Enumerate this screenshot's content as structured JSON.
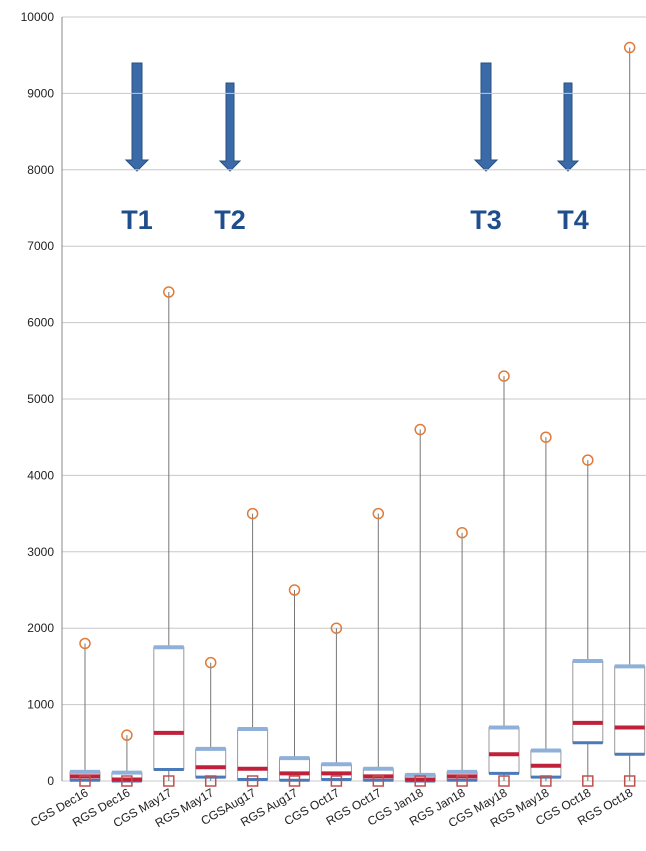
{
  "chart_data": {
    "type": "box",
    "categories": [
      "CGS Dec16",
      "RGS Dec16",
      "CGS May17",
      "RGS May17",
      "CGSAug17",
      "RGS Aug17",
      "CGS Oct17",
      "RGS Oct17",
      "CGS Jan18",
      "RGS Jan18",
      "CGS May18",
      "RGS May18",
      "CGS Oct18",
      "RGS Oct18"
    ],
    "min": [
      0,
      0,
      0,
      0,
      0,
      0,
      0,
      0,
      0,
      0,
      0,
      0,
      0,
      0
    ],
    "q1": [
      10,
      0,
      150,
      50,
      20,
      10,
      20,
      10,
      0,
      10,
      100,
      50,
      500,
      350
    ],
    "median": [
      60,
      20,
      630,
      180,
      160,
      100,
      100,
      60,
      20,
      60,
      350,
      200,
      760,
      700
    ],
    "q3": [
      120,
      110,
      1750,
      420,
      680,
      300,
      220,
      160,
      80,
      120,
      700,
      400,
      1570,
      1500
    ],
    "max": [
      1800,
      600,
      6400,
      1550,
      3500,
      2500,
      2000,
      3500,
      4600,
      3250,
      5300,
      4500,
      4200,
      9600
    ],
    "colors": {
      "box": "#8fb0d8",
      "median": "#c0203a",
      "max": "#e07b39",
      "min": "#c0504d",
      "whisker": "#777777"
    },
    "ylim": [
      0,
      10000
    ],
    "yticks": [
      0,
      1000,
      2000,
      3000,
      4000,
      5000,
      6000,
      7000,
      8000,
      9000,
      10000
    ],
    "grid": true,
    "annotations": [
      "T1",
      "T2",
      "T3",
      "T4"
    ]
  }
}
